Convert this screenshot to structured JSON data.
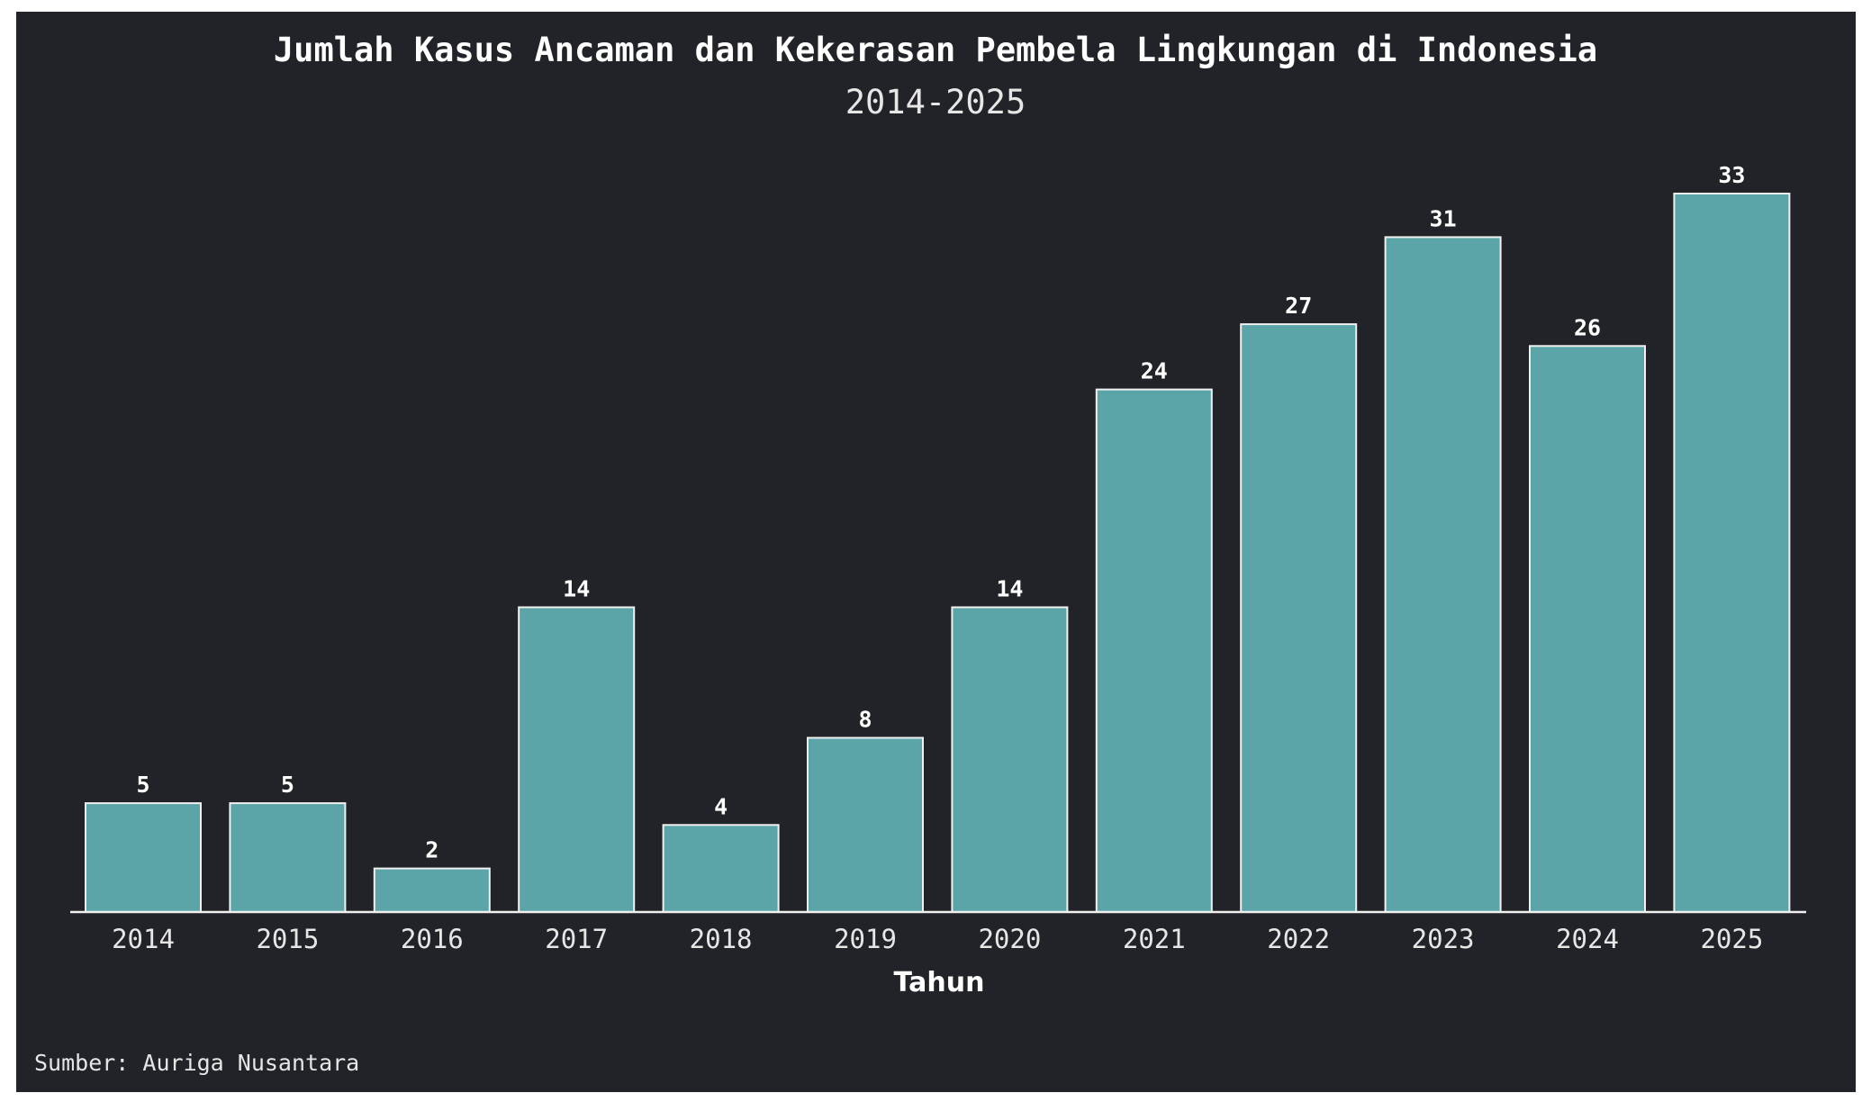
{
  "chart_data": {
    "type": "bar",
    "title": "Jumlah Kasus Ancaman dan Kekerasan Pembela Lingkungan di Indonesia",
    "subtitle": "2014-2025",
    "xlabel": "Tahun",
    "ylabel": "",
    "categories": [
      "2014",
      "2015",
      "2016",
      "2017",
      "2018",
      "2019",
      "2020",
      "2021",
      "2022",
      "2023",
      "2024",
      "2025"
    ],
    "values": [
      5,
      5,
      2,
      14,
      4,
      8,
      14,
      24,
      27,
      31,
      26,
      33
    ],
    "ylim": [
      0,
      33
    ],
    "grid": false,
    "legend": "none",
    "data_labels": true,
    "source": "Sumber: Auriga Nusantara",
    "colors": {
      "background": "#222328",
      "bar_fill": "#5ba5a8",
      "bar_stroke": "#f0f0f0",
      "axis": "#f0f0f0",
      "text": "#ffffff"
    }
  }
}
